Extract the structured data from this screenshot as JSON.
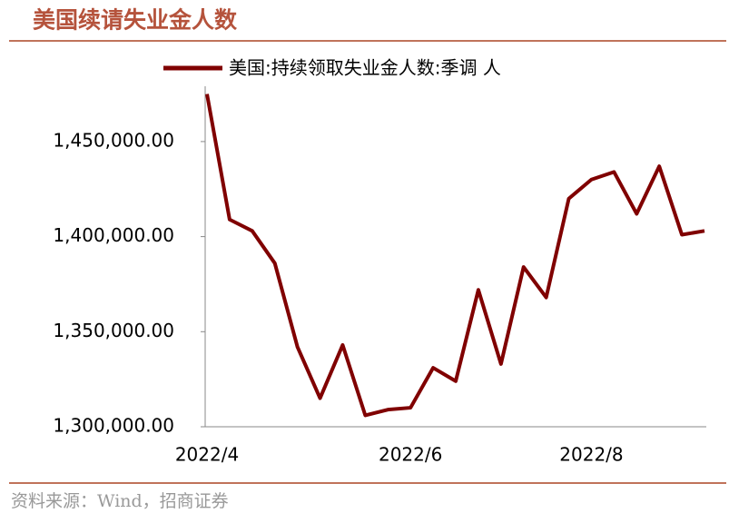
{
  "chart_data": {
    "type": "line",
    "title": "美国续请失业金人数",
    "source": "资料来源：Wind，招商证券",
    "categories": [
      "2022/4",
      null,
      null,
      null,
      null,
      null,
      null,
      null,
      null,
      "2022/6",
      null,
      null,
      null,
      null,
      null,
      null,
      null,
      "2022/8",
      null,
      null,
      null,
      null,
      null
    ],
    "series": [
      {
        "name": "美国:持续领取失业金人数:季调 人",
        "color": "#800000",
        "values": [
          1475000,
          1409000,
          1403000,
          1386000,
          1342000,
          1315000,
          1343000,
          1306000,
          1309000,
          1310000,
          1331000,
          1324000,
          1372000,
          1333000,
          1384000,
          1368000,
          1420000,
          1430000,
          1434000,
          1412000,
          1437000,
          1401000,
          1403000
        ]
      }
    ],
    "ylim": [
      1300000,
      1480000
    ],
    "yticks": [
      {
        "value": 1300000,
        "label": "1,300,000.00"
      },
      {
        "value": 1350000,
        "label": "1,350,000.00"
      },
      {
        "value": 1400000,
        "label": "1,400,000.00"
      },
      {
        "value": 1450000,
        "label": "1,450,000.00"
      }
    ],
    "legend": "top"
  }
}
